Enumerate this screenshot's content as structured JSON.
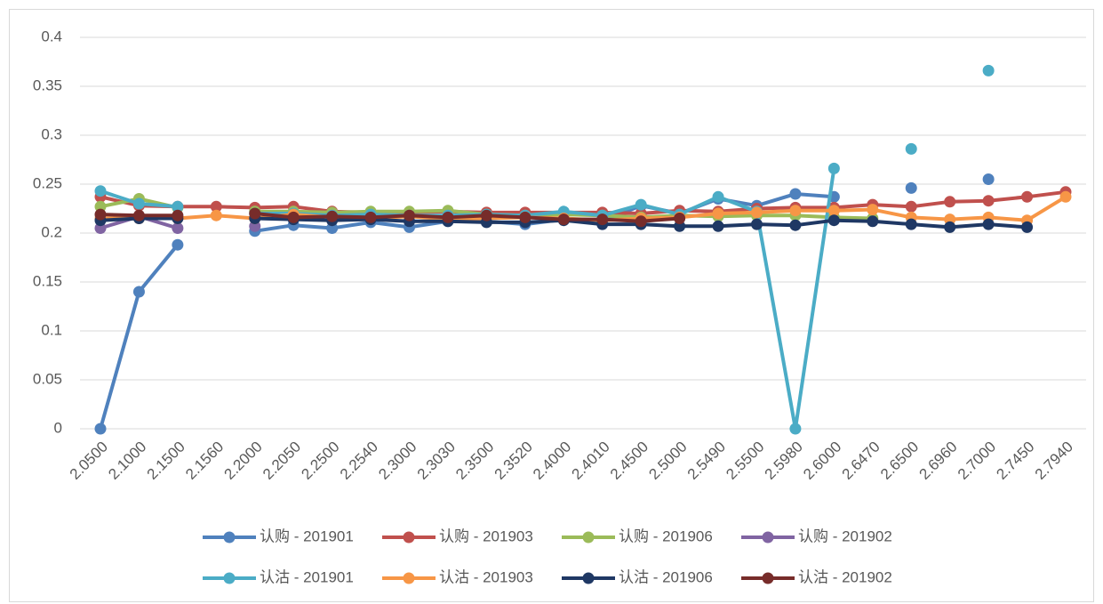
{
  "chart_data": {
    "type": "line",
    "categories": [
      "2.0500",
      "2.1000",
      "2.1500",
      "2.1560",
      "2.2000",
      "2.2050",
      "2.2500",
      "2.2540",
      "2.3000",
      "2.3030",
      "2.3500",
      "2.3520",
      "2.4000",
      "2.4010",
      "2.4500",
      "2.5000",
      "2.5490",
      "2.5500",
      "2.5980",
      "2.6000",
      "2.6470",
      "2.6500",
      "2.6960",
      "2.7000",
      "2.7450",
      "2.7940"
    ],
    "ylim": [
      0,
      0.4
    ],
    "yticks": [
      0,
      0.05,
      0.1,
      0.15,
      0.2,
      0.25,
      0.3,
      0.35,
      0.4
    ],
    "grid": true,
    "legend": "bottom",
    "series": [
      {
        "name": "认购 - 201901",
        "color": "#4f81bd",
        "values": [
          0,
          0.14,
          0.188,
          null,
          0.202,
          0.208,
          0.205,
          0.211,
          0.206,
          0.212,
          0.212,
          0.209,
          0.214,
          0.212,
          0.228,
          0.22,
          0.235,
          0.228,
          0.24,
          0.237,
          null,
          0.246,
          null,
          0.255,
          null,
          null
        ]
      },
      {
        "name": "认购 - 201903",
        "color": "#c0504d",
        "values": [
          0.237,
          0.228,
          0.227,
          0.227,
          0.226,
          0.227,
          0.222,
          0.221,
          0.221,
          0.222,
          0.221,
          0.221,
          0.221,
          0.221,
          0.22,
          0.223,
          0.222,
          0.225,
          0.226,
          0.226,
          0.229,
          0.227,
          0.232,
          0.233,
          0.237,
          0.242
        ]
      },
      {
        "name": "认购 - 201906",
        "color": "#9bbb59",
        "values": [
          0.227,
          0.235,
          0.226,
          null,
          0.222,
          0.222,
          0.221,
          0.222,
          0.222,
          0.223,
          0.219,
          0.218,
          0.219,
          0.218,
          0.216,
          0.218,
          0.217,
          0.218,
          0.218,
          0.216,
          0.215,
          null,
          null,
          null,
          null,
          null
        ]
      },
      {
        "name": "认购 - 201902",
        "color": "#8064a2",
        "values": [
          0.205,
          0.217,
          0.205,
          null,
          0.207,
          null,
          null,
          null,
          null,
          null,
          null,
          null,
          null,
          null,
          null,
          null,
          null,
          null,
          null,
          null,
          null,
          null,
          null,
          null,
          null,
          null
        ]
      },
      {
        "name": "认沽 - 201901",
        "color": "#4bacc6",
        "values": [
          0.243,
          0.23,
          0.227,
          null,
          0.22,
          0.22,
          0.218,
          0.219,
          0.218,
          0.218,
          0.219,
          0.218,
          0.222,
          0.218,
          0.229,
          0.219,
          0.237,
          0.222,
          0,
          0.266,
          null,
          0.286,
          null,
          0.366,
          null,
          null
        ]
      },
      {
        "name": "认沽 - 201903",
        "color": "#f79646",
        "values": [
          0.215,
          0.215,
          0.215,
          0.218,
          0.215,
          0.219,
          0.216,
          0.215,
          0.217,
          0.214,
          0.215,
          0.216,
          0.215,
          0.213,
          0.215,
          0.216,
          0.22,
          0.221,
          0.223,
          0.223,
          0.224,
          0.216,
          0.214,
          0.216,
          0.213,
          0.237
        ]
      },
      {
        "name": "认沽 - 201906",
        "color": "#1f3864",
        "values": [
          0.213,
          0.215,
          0.215,
          null,
          0.215,
          0.214,
          0.213,
          0.214,
          0.212,
          0.212,
          0.211,
          0.211,
          0.213,
          0.209,
          0.209,
          0.207,
          0.207,
          0.209,
          0.208,
          0.213,
          0.212,
          0.209,
          0.206,
          0.209,
          0.206,
          null
        ]
      },
      {
        "name": "认沽 - 201902",
        "color": "#772c2a",
        "values": [
          0.219,
          0.218,
          0.218,
          null,
          0.22,
          0.216,
          0.217,
          0.216,
          0.218,
          0.216,
          0.218,
          0.216,
          0.214,
          0.214,
          0.212,
          0.215,
          null,
          null,
          null,
          null,
          null,
          null,
          null,
          null,
          null,
          null
        ]
      }
    ]
  }
}
